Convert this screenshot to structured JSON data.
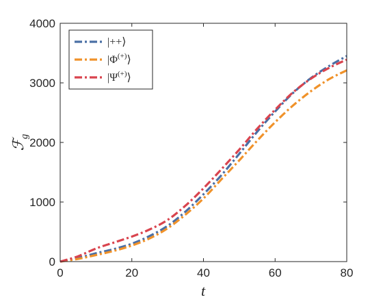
{
  "chart_data": {
    "type": "line",
    "xlabel": "t",
    "ylabel": "ℱ_g",
    "xlim": [
      0,
      80
    ],
    "ylim": [
      0,
      4000
    ],
    "xticks": [
      "0",
      "20",
      "40",
      "60",
      "80"
    ],
    "yticks": [
      "0",
      "1000",
      "2000",
      "3000",
      "4000"
    ],
    "grid": false,
    "legend_position": "top-left",
    "x": [
      0,
      5,
      10,
      15,
      20,
      25,
      30,
      35,
      40,
      45,
      50,
      55,
      60,
      65,
      70,
      75,
      80
    ],
    "series": [
      {
        "name": "|++⟩",
        "color": "#4A6FA5",
        "values": [
          0,
          60,
          140,
          210,
          300,
          430,
          600,
          840,
          1130,
          1450,
          1810,
          2180,
          2520,
          2830,
          3080,
          3280,
          3450
        ]
      },
      {
        "name": "|Φ(+)⟩",
        "color": "#F0922A",
        "values": [
          0,
          45,
          110,
          180,
          270,
          390,
          560,
          790,
          1060,
          1380,
          1700,
          2030,
          2340,
          2620,
          2860,
          3060,
          3210
        ]
      },
      {
        "name": "|Ψ(+)⟩",
        "color": "#D9444E",
        "values": [
          0,
          90,
          220,
          320,
          420,
          540,
          700,
          940,
          1230,
          1550,
          1880,
          2230,
          2550,
          2840,
          3070,
          3250,
          3390
        ]
      }
    ]
  }
}
